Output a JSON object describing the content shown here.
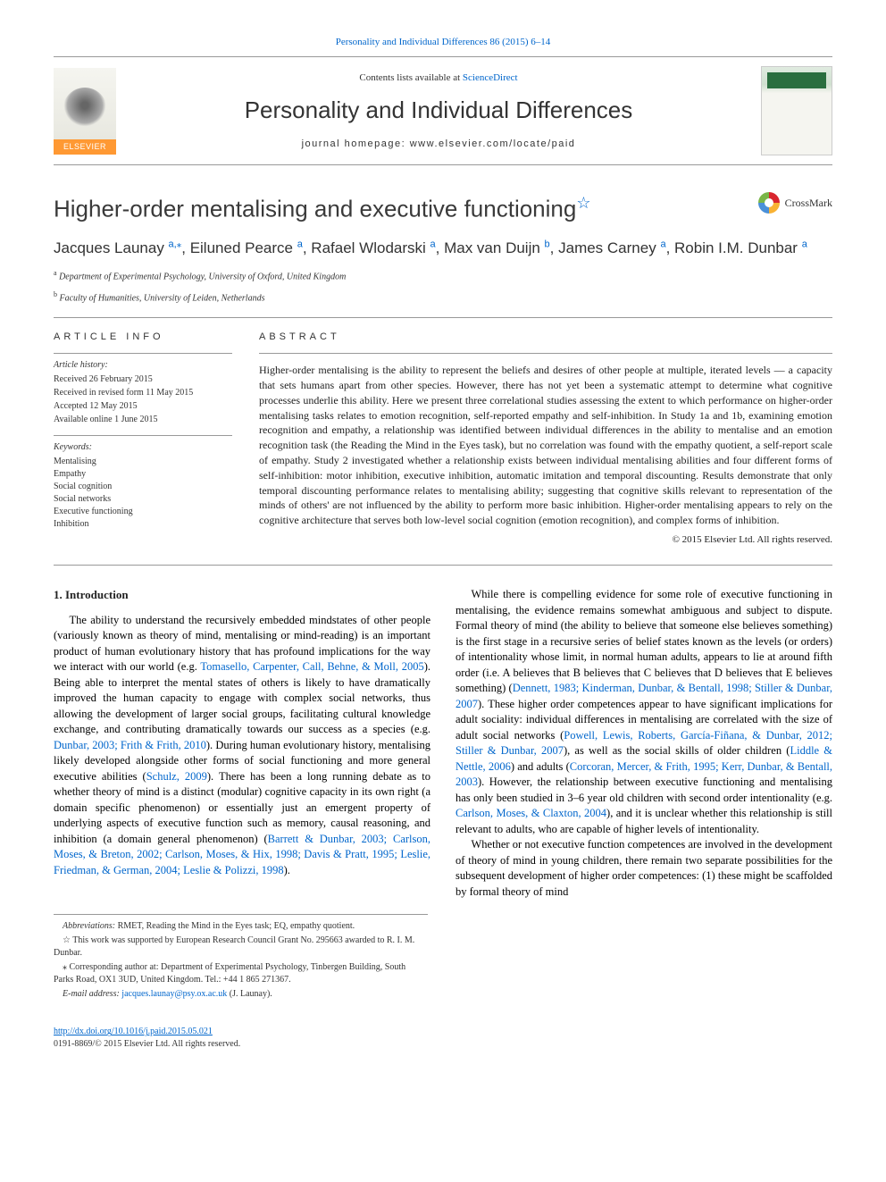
{
  "journal": {
    "citation_line": "Personality and Individual Differences 86 (2015) 6–14",
    "contents_prefix": "Contents lists available at ",
    "contents_link": "ScienceDirect",
    "title": "Personality and Individual Differences",
    "homepage_label": "journal homepage: www.elsevier.com/locate/paid",
    "publisher_name": "ELSEVIER"
  },
  "article": {
    "title": "Higher-order mentalising and executive functioning",
    "title_fn_mark": "☆",
    "crossmark_label": "CrossMark",
    "authors_parts": {
      "a1_name": "Jacques Launay ",
      "a1_aff": "a,",
      "a1_corr": "⁎",
      "sep1": ", ",
      "a2_name": "Eiluned Pearce ",
      "a2_aff": "a",
      "sep2": ", ",
      "a3_name": "Rafael Wlodarski ",
      "a3_aff": "a",
      "sep3": ", ",
      "a4_name": "Max van Duijn ",
      "a4_aff": "b",
      "sep4": ", ",
      "a5_name": "James Carney ",
      "a5_aff": "a",
      "sep5": ", ",
      "a6_name": "Robin I.M. Dunbar ",
      "a6_aff": "a"
    },
    "affiliations": {
      "a_label": "a",
      "a_text": " Department of Experimental Psychology, University of Oxford, United Kingdom",
      "b_label": "b",
      "b_text": " Faculty of Humanities, University of Leiden, Netherlands"
    }
  },
  "info": {
    "label": "article info",
    "history_head": "Article history:",
    "received": "Received 26 February 2015",
    "revised": "Received in revised form 11 May 2015",
    "accepted": "Accepted 12 May 2015",
    "online": "Available online 1 June 2015",
    "keywords_head": "Keywords:",
    "keywords": [
      "Mentalising",
      "Empathy",
      "Social cognition",
      "Social networks",
      "Executive functioning",
      "Inhibition"
    ]
  },
  "abstract": {
    "label": "abstract",
    "text": "Higher-order mentalising is the ability to represent the beliefs and desires of other people at multiple, iterated levels — a capacity that sets humans apart from other species. However, there has not yet been a systematic attempt to determine what cognitive processes underlie this ability. Here we present three correlational studies assessing the extent to which performance on higher-order mentalising tasks relates to emotion recognition, self-reported empathy and self-inhibition. In Study 1a and 1b, examining emotion recognition and empathy, a relationship was identified between individual differences in the ability to mentalise and an emotion recognition task (the Reading the Mind in the Eyes task), but no correlation was found with the empathy quotient, a self-report scale of empathy. Study 2 investigated whether a relationship exists between individual mentalising abilities and four different forms of self-inhibition: motor inhibition, executive inhibition, automatic imitation and temporal discounting. Results demonstrate that only temporal discounting performance relates to mentalising ability; suggesting that cognitive skills relevant to representation of the minds of others' are not influenced by the ability to perform more basic inhibition. Higher-order mentalising appears to rely on the cognitive architecture that serves both low-level social cognition (emotion recognition), and complex forms of inhibition.",
    "copyright": "© 2015 Elsevier Ltd. All rights reserved."
  },
  "body": {
    "h1": "1. Introduction",
    "p1_a": "The ability to understand the recursively embedded mindstates of other people (variously known as theory of mind, mentalising or mind-reading) is an important product of human evolutionary history that has profound implications for the way we interact with our world (e.g. ",
    "p1_c1": "Tomasello, Carpenter, Call, Behne, & Moll, 2005",
    "p1_b": "). Being able to interpret the mental states of others is likely to have dramatically improved the human capacity to engage with complex social networks, thus allowing the development of larger social groups, facilitating cultural knowledge exchange, and contributing dramatically towards our success as a species (e.g. ",
    "p1_c2": "Dunbar, 2003; Frith & Frith, 2010",
    "p1_c": "). During human evolutionary history, mentalising likely developed alongside other forms of social functioning and more general executive abilities (",
    "p1_c3": "Schulz, 2009",
    "p1_d": "). There has been a long running debate as to whether theory of mind is a distinct (modular) cognitive capacity in its own right (a domain specific phenomenon) or essentially just an emergent property of underlying aspects of executive function such as memory, causal reasoning, and inhibition (a domain general phenomenon) (",
    "p1_c4": "Barrett & Dunbar, 2003; Carlson, Moses, & Breton, 2002; Carlson, Moses, & Hix, 1998; Davis & Pratt, 1995; Leslie, Friedman, & German, 2004; Leslie & Polizzi, 1998",
    "p1_e": ").",
    "p2_a": "While there is compelling evidence for some role of executive functioning in mentalising, the evidence remains somewhat ambiguous and subject to dispute. Formal theory of mind (the ability to believe that someone else believes something) is the first stage in a recursive series of belief states known as the levels (or orders) of intentionality whose limit, in normal human adults, appears to lie at around fifth order (i.e. A believes that B believes that C believes that D believes that E believes something) (",
    "p2_c1": "Dennett, 1983; Kinderman, Dunbar, & Bentall, 1998; Stiller & Dunbar, 2007",
    "p2_b": "). These higher order competences appear to have significant implications for adult sociality: individual differences in mentalising are correlated with the size of adult social networks (",
    "p2_c2": "Powell, Lewis, Roberts, García-Fiñana, & Dunbar, 2012; Stiller & Dunbar, 2007",
    "p2_c": "), as well as the social skills of older children (",
    "p2_c3": "Liddle & Nettle, 2006",
    "p2_d": ") and adults (",
    "p2_c4": "Corcoran, Mercer, & Frith, 1995; Kerr, Dunbar, & Bentall, 2003",
    "p2_e": "). However, the relationship between executive functioning and mentalising has only been studied in 3–6 year old children with second order intentionality (e.g. ",
    "p2_c5": "Carlson, Moses, & Claxton, 2004",
    "p2_f": "), and it is unclear whether this relationship is still relevant to adults, who are capable of higher levels of intentionality.",
    "p3": "Whether or not executive function competences are involved in the development of theory of mind in young children, there remain two separate possibilities for the subsequent development of higher order competences: (1) these might be scaffolded by formal theory of mind"
  },
  "footnotes": {
    "abbrev_label": "Abbreviations:",
    "abbrev_text": " RMET, Reading the Mind in the Eyes task; EQ, empathy quotient.",
    "funding_sym": "☆",
    "funding_text": " This work was supported by European Research Council Grant No. 295663 awarded to R. I. M. Dunbar.",
    "corr_sym": "⁎",
    "corr_text": " Corresponding author at: Department of Experimental Psychology, Tinbergen Building, South Parks Road, OX1 3UD, United Kingdom. Tel.: +44 1 865 271367.",
    "email_label": "E-mail address: ",
    "email": "jacques.launay@psy.ox.ac.uk",
    "email_tail": " (J. Launay)."
  },
  "footer": {
    "doi": "http://dx.doi.org/10.1016/j.paid.2015.05.021",
    "issn_copy": "0191-8869/© 2015 Elsevier Ltd. All rights reserved."
  },
  "colors": {
    "link": "#0066cc",
    "text": "#000000",
    "rule": "#999999",
    "publisher_orange": "#ff9933",
    "cover_green": "#2a6e3f"
  }
}
